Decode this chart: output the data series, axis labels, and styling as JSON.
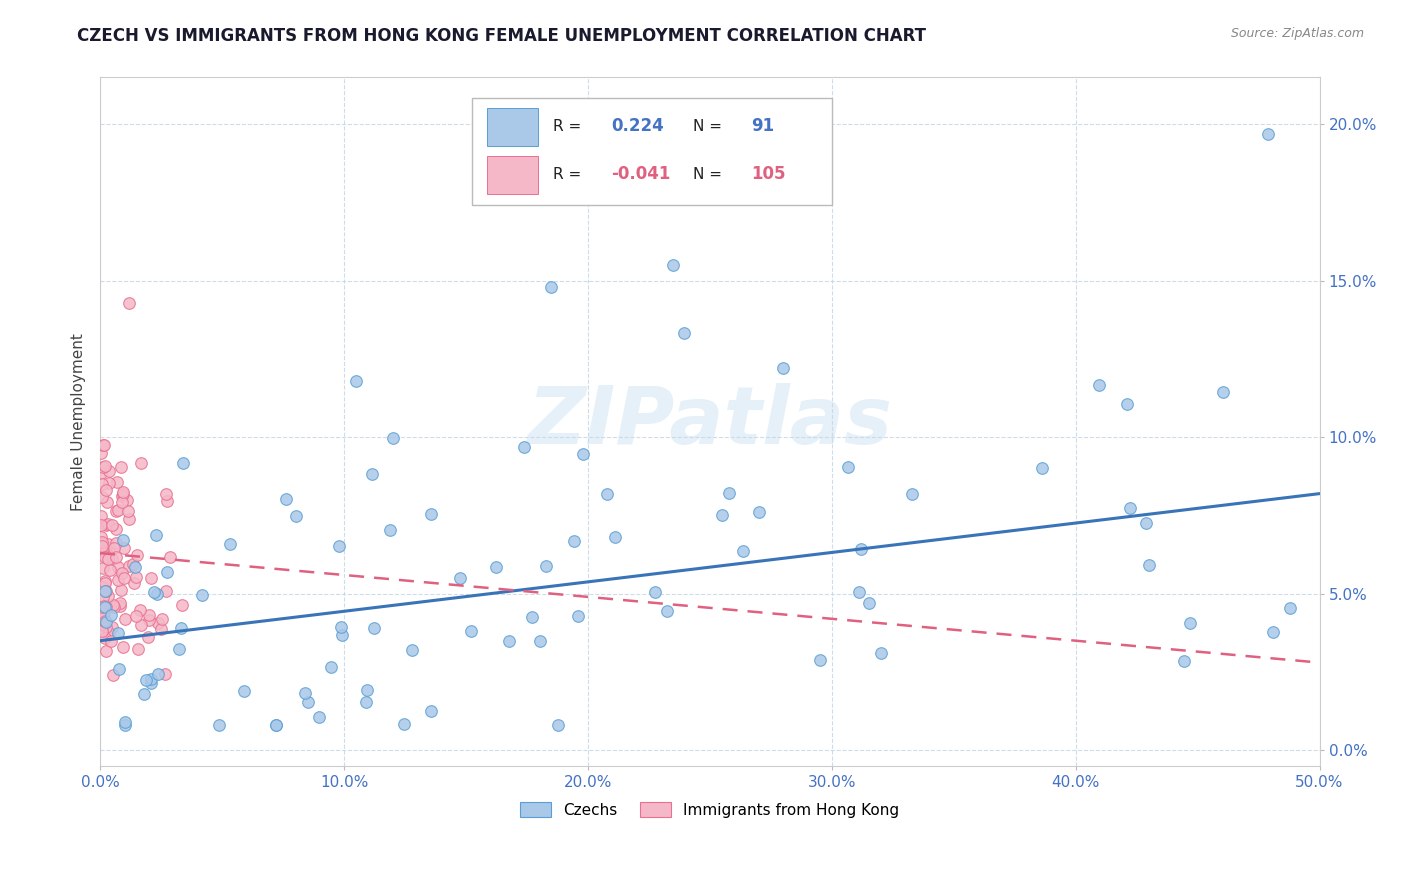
{
  "title": "CZECH VS IMMIGRANTS FROM HONG KONG FEMALE UNEMPLOYMENT CORRELATION CHART",
  "source": "Source: ZipAtlas.com",
  "ylabel": "Female Unemployment",
  "xlim": [
    0.0,
    0.5
  ],
  "ylim": [
    -0.005,
    0.215
  ],
  "xtick_vals": [
    0.0,
    0.1,
    0.2,
    0.3,
    0.4,
    0.5
  ],
  "ytick_vals": [
    0.0,
    0.05,
    0.1,
    0.15,
    0.2
  ],
  "blue_face": "#aac8e8",
  "blue_edge": "#5a9fd4",
  "pink_face": "#f5b8c8",
  "pink_edge": "#e87090",
  "blue_line": "#3a74b8",
  "pink_line": "#e06080",
  "tick_color": "#4472c4",
  "grid_color": "#c8d8e8",
  "legend_r1_val": "0.224",
  "legend_n1_val": "91",
  "legend_r2_val": "-0.041",
  "legend_n2_val": "105",
  "czech_trend_x0": 0.0,
  "czech_trend_y0": 0.035,
  "czech_trend_x1": 0.5,
  "czech_trend_y1": 0.082,
  "hk_trend_x0": 0.0,
  "hk_trend_y0": 0.063,
  "hk_trend_x1": 0.5,
  "hk_trend_y1": 0.028
}
